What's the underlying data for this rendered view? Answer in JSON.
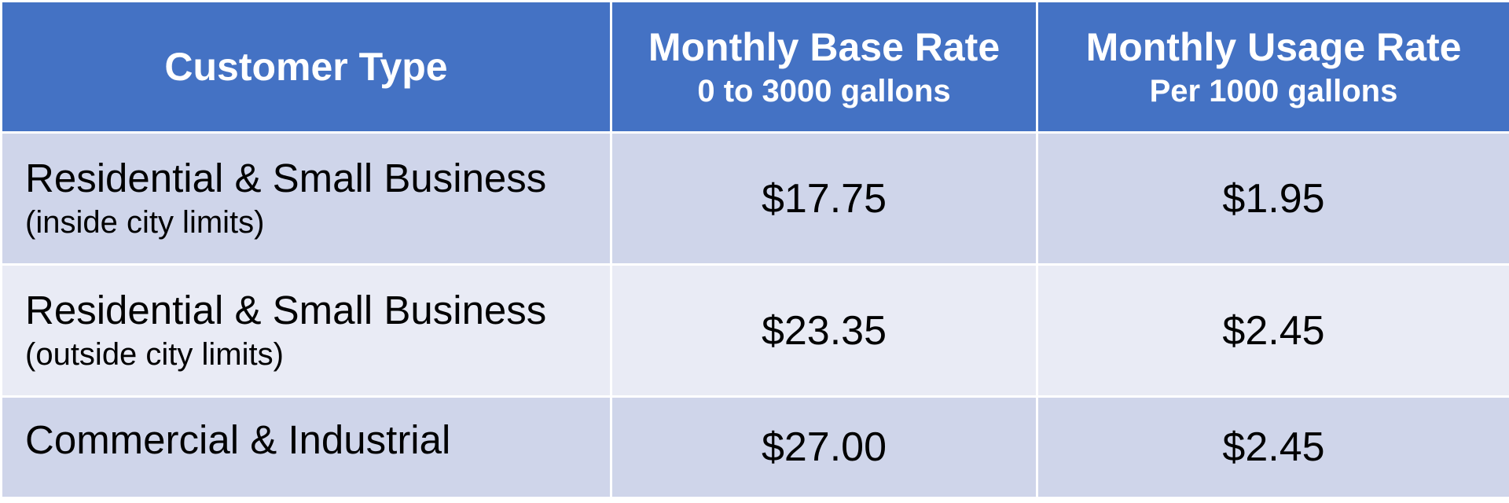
{
  "table": {
    "headers": [
      {
        "main": "Customer Type",
        "sub": ""
      },
      {
        "main": "Monthly Base Rate",
        "sub": "0 to 3000 gallons"
      },
      {
        "main": "Monthly Usage Rate",
        "sub": "Per 1000 gallons"
      }
    ],
    "rows": [
      {
        "customer_type": "Residential & Small Business",
        "note": "(inside city limits)",
        "base_rate": "$17.75",
        "usage_rate": "$1.95"
      },
      {
        "customer_type": "Residential & Small Business",
        "note": "(outside city limits)",
        "base_rate": "$23.35",
        "usage_rate": "$2.45"
      },
      {
        "customer_type": "Commercial & Industrial",
        "note": "",
        "base_rate": "$27.00",
        "usage_rate": "$2.45"
      }
    ]
  },
  "colors": {
    "header_background": "#4472c4",
    "header_text": "#ffffff",
    "row_odd_background": "#cfd5ea",
    "row_even_background": "#e9ebf5",
    "body_text": "#000000",
    "grid_lines": "#ffffff"
  }
}
